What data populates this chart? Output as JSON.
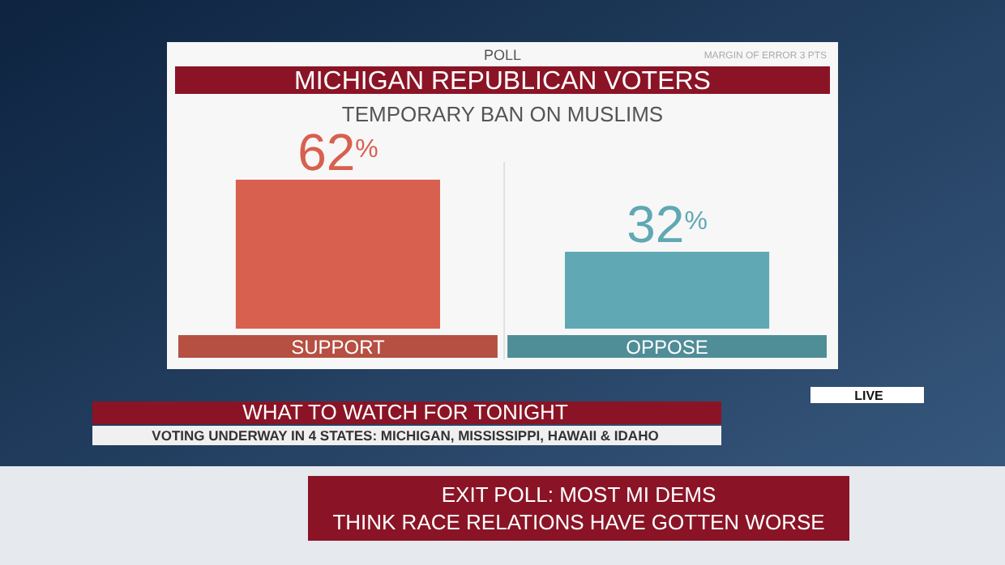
{
  "chart_data": {
    "type": "bar",
    "title": "MICHIGAN REPUBLICAN VOTERS",
    "subtitle": "TEMPORARY BAN ON MUSLIMS",
    "categories": [
      "SUPPORT",
      "OPPOSE"
    ],
    "values": [
      62,
      32
    ],
    "colors": [
      "#d8604f",
      "#5fa8b4"
    ],
    "value_labels": [
      "62$^{%}$",
      "32$^{%}$"
    ],
    "annotations": [
      "POLL",
      "MARGIN OF ERROR 3 PTS",
      "WHAT TO WATCH FOR TONIGHT",
      "VOTING UNDERWAY IN 4 STATES: MICHIGAN, MISSISSIPPI, HAWAII & IDAHO",
      "LIVE",
      "EXIT POLL: MOST MI DEMS",
      "THINK RACE RELATIONS HAVE GOTTEN WORSE"
    ]
  }
}
